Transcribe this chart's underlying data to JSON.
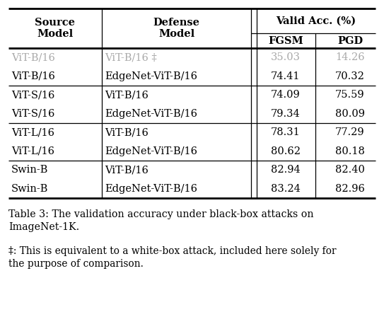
{
  "title": "Table 3: The validation accuracy under black-box attacks on\nImageNet-1K.",
  "footnote": "‡: This is equivalent to a white-box attack, included here solely for\nthe purpose of comparison.",
  "rows": [
    {
      "source": "ViT-B/16",
      "defense": "ViT-B/16 ‡",
      "fgsm": "35.03",
      "pgd": "14.26",
      "gray": true
    },
    {
      "source": "ViT-B/16",
      "defense": "EdgeNet-ViT-B/16",
      "fgsm": "74.41",
      "pgd": "70.32",
      "gray": false
    },
    {
      "source": "ViT-S/16",
      "defense": "ViT-B/16",
      "fgsm": "74.09",
      "pgd": "75.59",
      "gray": false
    },
    {
      "source": "ViT-S/16",
      "defense": "EdgeNet-ViT-B/16",
      "fgsm": "79.34",
      "pgd": "80.09",
      "gray": false
    },
    {
      "source": "ViT-L/16",
      "defense": "ViT-B/16",
      "fgsm": "78.31",
      "pgd": "77.29",
      "gray": false
    },
    {
      "source": "ViT-L/16",
      "defense": "EdgeNet-ViT-B/16",
      "fgsm": "80.62",
      "pgd": "80.18",
      "gray": false
    },
    {
      "source": "Swin-B",
      "defense": "ViT-B/16",
      "fgsm": "82.94",
      "pgd": "82.40",
      "gray": false
    },
    {
      "source": "Swin-B",
      "defense": "EdgeNet-ViT-B/16",
      "fgsm": "83.24",
      "pgd": "82.96",
      "gray": false
    }
  ],
  "group_separators_after": [
    1,
    3,
    5
  ],
  "background_color": "#ffffff",
  "text_color": "#000000",
  "gray_color": "#aaaaaa",
  "font_size": 10.5,
  "caption_font_size": 10.2
}
